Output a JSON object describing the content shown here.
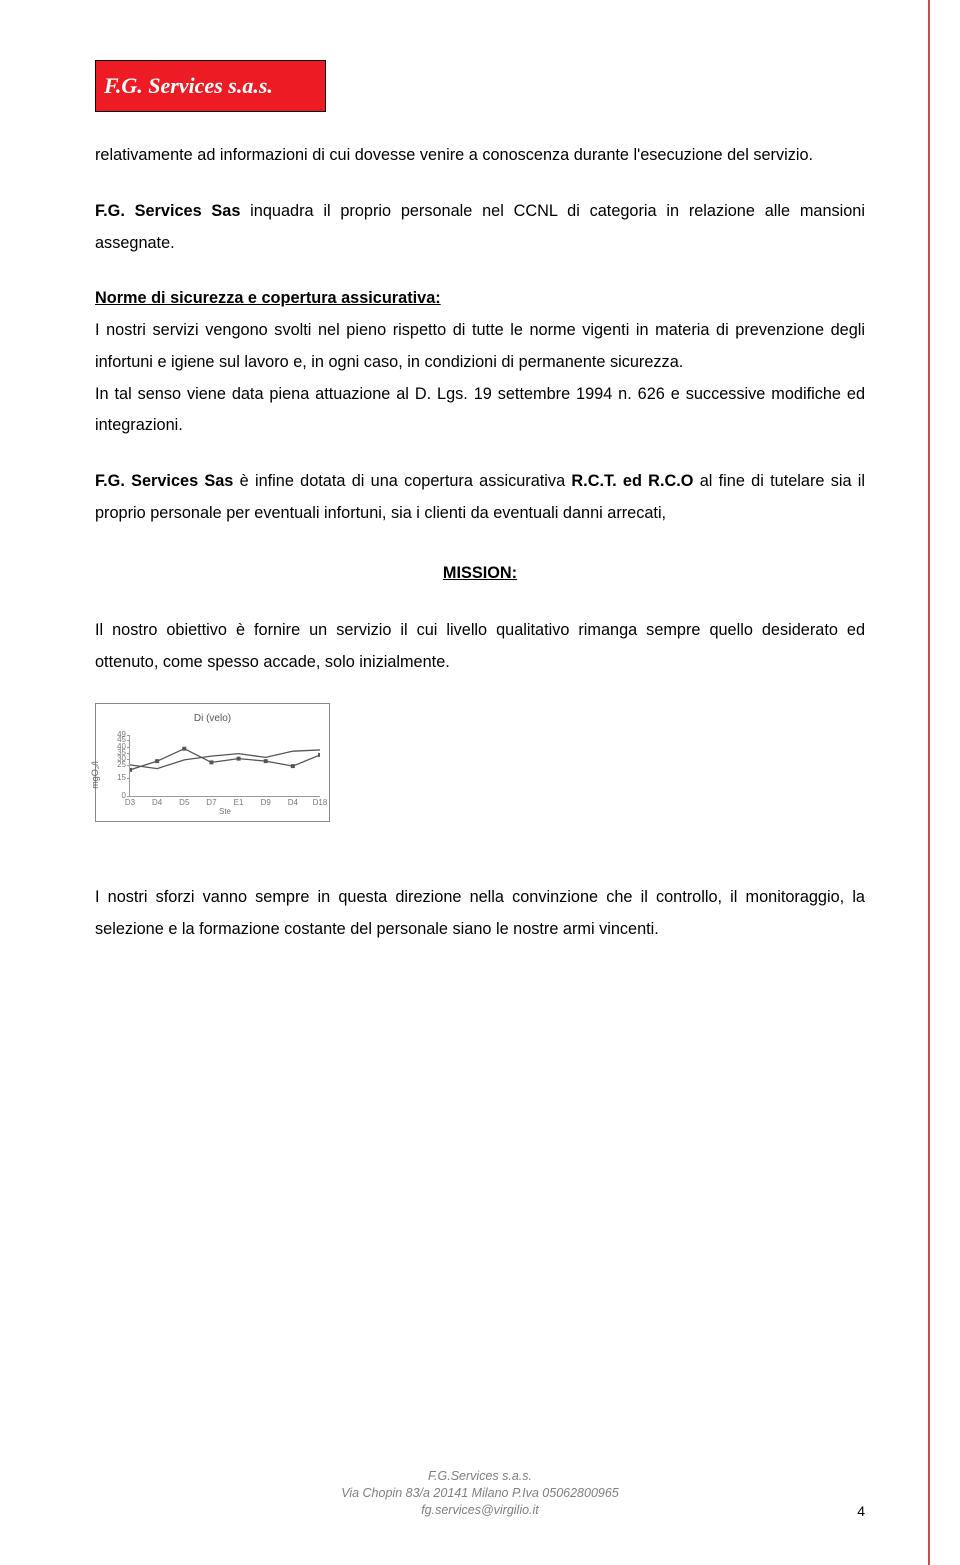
{
  "logo": {
    "text": "F.G. Services s.a.s."
  },
  "paragraphs": {
    "p1": "relativamente ad informazioni di cui dovesse venire a conoscenza durante l'esecuzione del servizio.",
    "p2_prefix": "F.G. Services Sas",
    "p2_rest": " inquadra il  proprio personale nel CCNL di categoria in relazione alle mansioni assegnate.",
    "norme_h": "Norme di sicurezza e copertura assicurativa:",
    "p3a": "I nostri servizi vengono svolti nel pieno rispetto di tutte le norme vigenti in materia di prevenzione degli infortuni e igiene sul lavoro e, in ogni caso, in condizioni di permanente sicurezza.",
    "p3b": "In tal senso viene data piena attuazione al D. Lgs. 19 settembre 1994 n. 626 e successive modifiche ed integrazioni.",
    "p4_prefix": "F.G. Services Sas",
    "p4_mid": " è infine dotata di una copertura assicurativa ",
    "p4_b1": "R.C.T. ed R.C.O",
    "p4_end": " al fine di tutelare sia il proprio personale per eventuali infortuni, sia i clienti da eventuali danni arrecati,",
    "mission": "MISSION:",
    "p5": "Il nostro obiettivo è fornire un servizio il cui livello qualitativo rimanga sempre quello desiderato ed ottenuto, come spesso accade, solo inizialmente.",
    "p6": "I nostri sforzi vanno sempre in questa  direzione nella convinzione che il controllo, il monitoraggio, la selezione e la formazione costante del personale siano le nostre armi vincenti."
  },
  "chart": {
    "type": "line",
    "title": "Di (velo)",
    "ylabel": "mgO₂/l",
    "x_sub": "Ste",
    "categories": [
      "D3",
      "D4",
      "D5",
      "D7",
      "E1",
      "D9",
      "D4",
      "D18"
    ],
    "series": [
      {
        "values": [
          21,
          28,
          38,
          27,
          30,
          28,
          24,
          33
        ],
        "color": "#555555",
        "width": 1.3,
        "marker": "square"
      },
      {
        "values": [
          25,
          22,
          29,
          32,
          34,
          31,
          36,
          37
        ],
        "color": "#555555",
        "width": 1.3,
        "marker": "none"
      }
    ],
    "ylim": [
      0,
      49
    ],
    "yticks": [
      0,
      15,
      25,
      30,
      35,
      40,
      45,
      49
    ],
    "border_color": "#999999",
    "tick_font_size": 8,
    "title_font_size": 10,
    "background_color": "#ffffff"
  },
  "footer": {
    "line1": "F.G.Services s.a.s.",
    "line2": "Via Chopin 83/a 20141 Milano P.Iva 05062800965",
    "line3": "fg.services@virgilio.it"
  },
  "page_number": "4",
  "accent_rule_color": "#c0504d"
}
